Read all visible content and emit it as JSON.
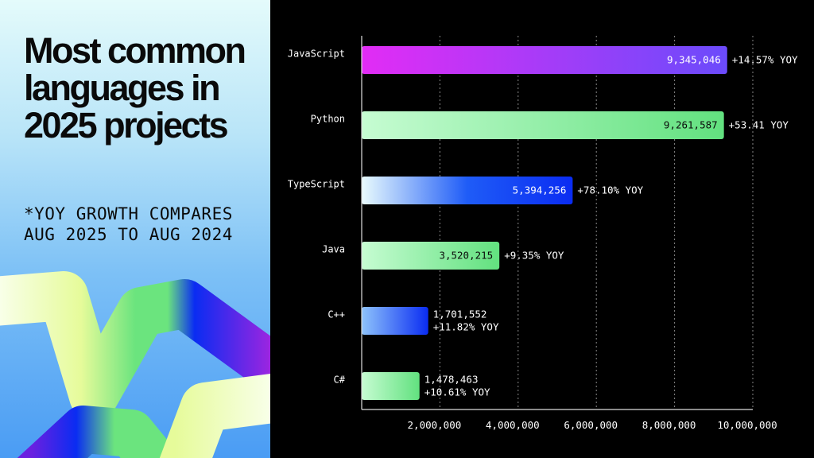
{
  "title": "Most common languages in 2025 projects",
  "note": "*YOY GROWTH COMPARES AUG 2025 TO AUG 2024",
  "chart_data": {
    "type": "bar",
    "orientation": "horizontal",
    "categories": [
      "JavaScript",
      "Python",
      "TypeScript",
      "Java",
      "C++",
      "C#"
    ],
    "values": [
      9345046,
      9261587,
      5394256,
      3520215,
      1701552,
      1478463
    ],
    "value_labels": [
      "9,345,046",
      "9,261,587",
      "5,394,256",
      "3,520,215",
      "1,701,552",
      "1,478,463"
    ],
    "growth_labels": [
      "+14.57% YOY",
      "+53.41 YOY",
      "+78.10% YOY",
      "+9.35% YOY",
      "+11.82% YOY",
      "+10.61% YOY"
    ],
    "bar_gradients": [
      [
        "#e22cf5",
        "#6b4bfb"
      ],
      [
        "#c6fcd2",
        "#62e17f"
      ],
      [
        "#e9fbfd",
        "#1f5cf7",
        "#0a2cf2"
      ],
      [
        "#c6fcd2",
        "#62e17f"
      ],
      [
        "#8ec3fb",
        "#0a2cf2"
      ],
      [
        "#c6fcd2",
        "#62e17f"
      ]
    ],
    "label_colors": [
      "#ffffff",
      "#0a0a0a",
      "#ffffff",
      "#0a0a0a",
      "#ffffff",
      "#ffffff"
    ],
    "xlim": [
      0,
      10000000
    ],
    "xticks": [
      2000000,
      4000000,
      6000000,
      8000000,
      10000000
    ],
    "xtick_labels": [
      "2,000,000",
      "4,000,000",
      "6,000,000",
      "8,000,000",
      "10,000,000"
    ],
    "grid": "vertical dashed",
    "xlabel": "",
    "ylabel": ""
  }
}
